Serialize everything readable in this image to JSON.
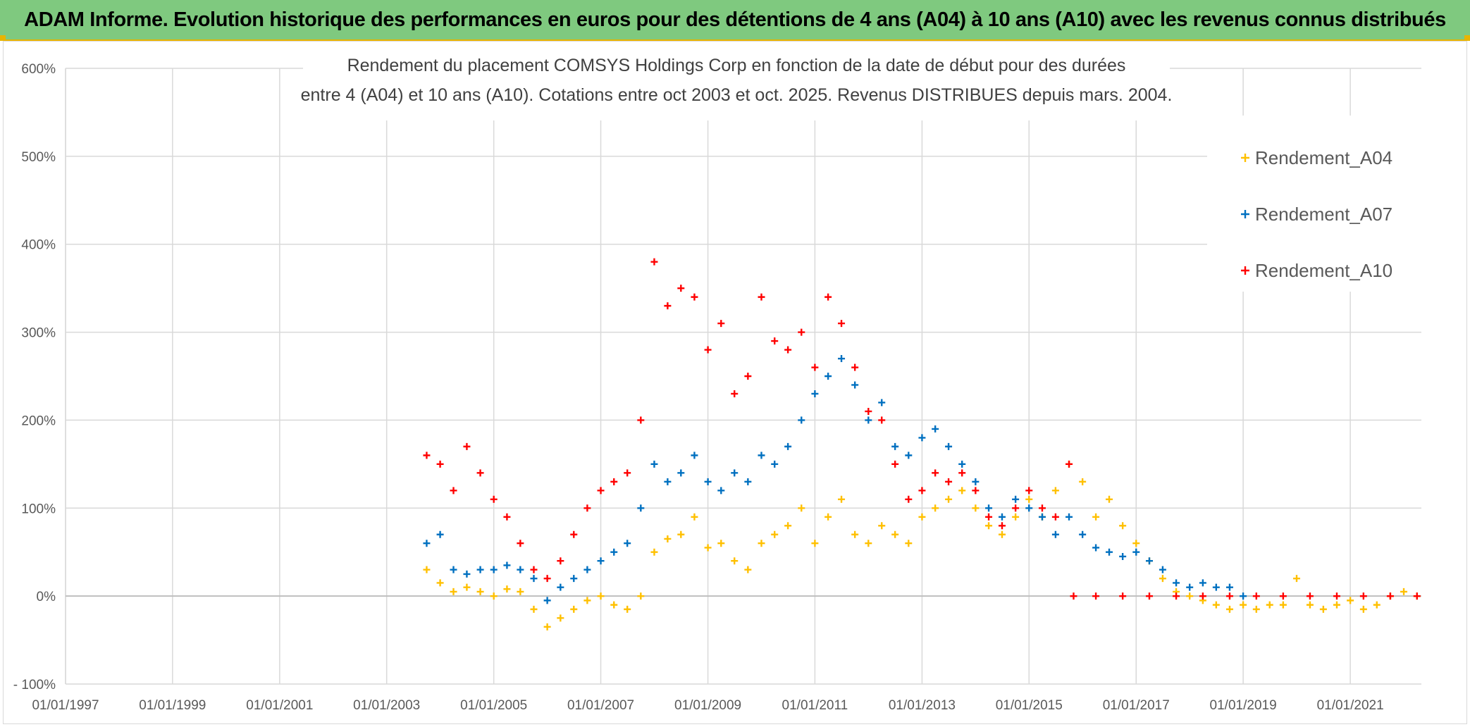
{
  "banner": {
    "title": "ADAM Informe. Evolution historique des performances en euros pour des détentions de 4 ans (A04) à 10 ans (A10) avec les revenus connus distribués"
  },
  "chart_data": {
    "type": "scatter",
    "title_line1": "Rendement du placement COMSYS Holdings Corp en fonction de la date de début pour des durées",
    "title_line2": "entre 4 (A04) et 10 ans (A10). Cotations entre oct 2003 et oct. 2025. Revenus DISTRIBUES depuis mars. 2004.",
    "xlabel": "",
    "ylabel": "",
    "xlim": [
      "1997-01-01",
      "2022-05-01"
    ],
    "ylim": [
      -100,
      600
    ],
    "x_ticks": [
      "01/01/1997",
      "01/01/1999",
      "01/01/2001",
      "01/01/2003",
      "01/01/2005",
      "01/01/2007",
      "01/01/2009",
      "01/01/2011",
      "01/01/2013",
      "01/01/2015",
      "01/01/2017",
      "01/01/2019",
      "01/01/2021"
    ],
    "y_ticks": [
      "- 100%",
      "0%",
      "100%",
      "200%",
      "300%",
      "400%",
      "500%",
      "600%"
    ],
    "y_tick_values": [
      -100,
      0,
      100,
      200,
      300,
      400,
      500,
      600
    ],
    "grid": true,
    "legend_position": "top-right",
    "marker": "+",
    "series": [
      {
        "name": "Rendement_A04",
        "color": "#ffc000",
        "points": [
          [
            "2003-10-01",
            30
          ],
          [
            "2004-01-01",
            15
          ],
          [
            "2004-04-01",
            5
          ],
          [
            "2004-07-01",
            10
          ],
          [
            "2004-10-01",
            5
          ],
          [
            "2005-01-01",
            0
          ],
          [
            "2005-04-01",
            8
          ],
          [
            "2005-07-01",
            5
          ],
          [
            "2005-10-01",
            -15
          ],
          [
            "2006-01-01",
            -35
          ],
          [
            "2006-04-01",
            -25
          ],
          [
            "2006-07-01",
            -15
          ],
          [
            "2006-10-01",
            -5
          ],
          [
            "2007-01-01",
            0
          ],
          [
            "2007-04-01",
            -10
          ],
          [
            "2007-07-01",
            -15
          ],
          [
            "2007-10-01",
            0
          ],
          [
            "2008-01-01",
            50
          ],
          [
            "2008-04-01",
            65
          ],
          [
            "2008-07-01",
            70
          ],
          [
            "2008-10-01",
            90
          ],
          [
            "2009-01-01",
            55
          ],
          [
            "2009-04-01",
            60
          ],
          [
            "2009-07-01",
            40
          ],
          [
            "2009-10-01",
            30
          ],
          [
            "2010-01-01",
            60
          ],
          [
            "2010-04-01",
            70
          ],
          [
            "2010-07-01",
            80
          ],
          [
            "2010-10-01",
            100
          ],
          [
            "2011-01-01",
            60
          ],
          [
            "2011-04-01",
            90
          ],
          [
            "2011-07-01",
            110
          ],
          [
            "2011-10-01",
            70
          ],
          [
            "2012-01-01",
            60
          ],
          [
            "2012-04-01",
            80
          ],
          [
            "2012-07-01",
            70
          ],
          [
            "2012-10-01",
            60
          ],
          [
            "2013-01-01",
            90
          ],
          [
            "2013-04-01",
            100
          ],
          [
            "2013-07-01",
            110
          ],
          [
            "2013-10-01",
            120
          ],
          [
            "2014-01-01",
            100
          ],
          [
            "2014-04-01",
            80
          ],
          [
            "2014-07-01",
            70
          ],
          [
            "2014-10-01",
            90
          ],
          [
            "2015-01-01",
            110
          ],
          [
            "2015-04-01",
            90
          ],
          [
            "2015-07-01",
            120
          ],
          [
            "2015-10-01",
            150
          ],
          [
            "2016-01-01",
            130
          ],
          [
            "2016-04-01",
            90
          ],
          [
            "2016-07-01",
            110
          ],
          [
            "2016-10-01",
            80
          ],
          [
            "2017-01-01",
            60
          ],
          [
            "2017-04-01",
            40
          ],
          [
            "2017-07-01",
            20
          ],
          [
            "2017-10-01",
            5
          ],
          [
            "2018-01-01",
            0
          ],
          [
            "2018-04-01",
            -5
          ],
          [
            "2018-07-01",
            -10
          ],
          [
            "2018-10-01",
            -15
          ],
          [
            "2019-01-01",
            -10
          ],
          [
            "2019-04-01",
            -15
          ],
          [
            "2019-07-01",
            -10
          ],
          [
            "2019-10-01",
            -10
          ],
          [
            "2020-01-01",
            20
          ],
          [
            "2020-04-01",
            -10
          ],
          [
            "2020-07-01",
            -15
          ],
          [
            "2020-10-01",
            -10
          ],
          [
            "2021-01-01",
            -5
          ],
          [
            "2021-04-01",
            -15
          ],
          [
            "2021-07-01",
            -10
          ],
          [
            "2021-10-01",
            0
          ],
          [
            "2022-01-01",
            5
          ],
          [
            "2022-04-01",
            0
          ]
        ]
      },
      {
        "name": "Rendement_A07",
        "color": "#0070c0",
        "points": [
          [
            "2003-10-01",
            60
          ],
          [
            "2004-01-01",
            70
          ],
          [
            "2004-04-01",
            30
          ],
          [
            "2004-07-01",
            25
          ],
          [
            "2004-10-01",
            30
          ],
          [
            "2005-01-01",
            30
          ],
          [
            "2005-04-01",
            35
          ],
          [
            "2005-07-01",
            30
          ],
          [
            "2005-10-01",
            20
          ],
          [
            "2006-01-01",
            -5
          ],
          [
            "2006-04-01",
            10
          ],
          [
            "2006-07-01",
            20
          ],
          [
            "2006-10-01",
            30
          ],
          [
            "2007-01-01",
            40
          ],
          [
            "2007-04-01",
            50
          ],
          [
            "2007-07-01",
            60
          ],
          [
            "2007-10-01",
            100
          ],
          [
            "2008-01-01",
            150
          ],
          [
            "2008-04-01",
            130
          ],
          [
            "2008-07-01",
            140
          ],
          [
            "2008-10-01",
            160
          ],
          [
            "2009-01-01",
            130
          ],
          [
            "2009-04-01",
            120
          ],
          [
            "2009-07-01",
            140
          ],
          [
            "2009-10-01",
            130
          ],
          [
            "2010-01-01",
            160
          ],
          [
            "2010-04-01",
            150
          ],
          [
            "2010-07-01",
            170
          ],
          [
            "2010-10-01",
            200
          ],
          [
            "2011-01-01",
            230
          ],
          [
            "2011-04-01",
            250
          ],
          [
            "2011-07-01",
            270
          ],
          [
            "2011-10-01",
            240
          ],
          [
            "2012-01-01",
            200
          ],
          [
            "2012-04-01",
            220
          ],
          [
            "2012-07-01",
            170
          ],
          [
            "2012-10-01",
            160
          ],
          [
            "2013-01-01",
            180
          ],
          [
            "2013-04-01",
            190
          ],
          [
            "2013-07-01",
            170
          ],
          [
            "2013-10-01",
            150
          ],
          [
            "2014-01-01",
            130
          ],
          [
            "2014-04-01",
            100
          ],
          [
            "2014-07-01",
            90
          ],
          [
            "2014-10-01",
            110
          ],
          [
            "2015-01-01",
            100
          ],
          [
            "2015-04-01",
            90
          ],
          [
            "2015-07-01",
            70
          ],
          [
            "2015-10-01",
            90
          ],
          [
            "2016-01-01",
            70
          ],
          [
            "2016-04-01",
            55
          ],
          [
            "2016-07-01",
            50
          ],
          [
            "2016-10-01",
            45
          ],
          [
            "2017-01-01",
            50
          ],
          [
            "2017-04-01",
            40
          ],
          [
            "2017-07-01",
            30
          ],
          [
            "2017-10-01",
            15
          ],
          [
            "2018-01-01",
            10
          ],
          [
            "2018-04-01",
            15
          ],
          [
            "2018-07-01",
            10
          ],
          [
            "2018-10-01",
            10
          ],
          [
            "2019-01-01",
            0
          ]
        ]
      },
      {
        "name": "Rendement_A10",
        "color": "#ff0000",
        "points": [
          [
            "2003-10-01",
            160
          ],
          [
            "2004-01-01",
            150
          ],
          [
            "2004-04-01",
            120
          ],
          [
            "2004-07-01",
            170
          ],
          [
            "2004-10-01",
            140
          ],
          [
            "2005-01-01",
            110
          ],
          [
            "2005-04-01",
            90
          ],
          [
            "2005-07-01",
            60
          ],
          [
            "2005-10-01",
            30
          ],
          [
            "2006-01-01",
            20
          ],
          [
            "2006-04-01",
            40
          ],
          [
            "2006-07-01",
            70
          ],
          [
            "2006-10-01",
            100
          ],
          [
            "2007-01-01",
            120
          ],
          [
            "2007-04-01",
            130
          ],
          [
            "2007-07-01",
            140
          ],
          [
            "2007-10-01",
            200
          ],
          [
            "2008-01-01",
            380
          ],
          [
            "2008-04-01",
            330
          ],
          [
            "2008-07-01",
            350
          ],
          [
            "2008-10-01",
            340
          ],
          [
            "2009-01-01",
            280
          ],
          [
            "2009-04-01",
            310
          ],
          [
            "2009-07-01",
            230
          ],
          [
            "2009-10-01",
            250
          ],
          [
            "2010-01-01",
            340
          ],
          [
            "2010-04-01",
            290
          ],
          [
            "2010-07-01",
            280
          ],
          [
            "2010-10-01",
            300
          ],
          [
            "2011-01-01",
            260
          ],
          [
            "2011-04-01",
            340
          ],
          [
            "2011-07-01",
            310
          ],
          [
            "2011-10-01",
            260
          ],
          [
            "2012-01-01",
            210
          ],
          [
            "2012-04-01",
            200
          ],
          [
            "2012-07-01",
            150
          ],
          [
            "2012-10-01",
            110
          ],
          [
            "2013-01-01",
            120
          ],
          [
            "2013-04-01",
            140
          ],
          [
            "2013-07-01",
            130
          ],
          [
            "2013-10-01",
            140
          ],
          [
            "2014-01-01",
            120
          ],
          [
            "2014-04-01",
            90
          ],
          [
            "2014-07-01",
            80
          ],
          [
            "2014-10-01",
            100
          ],
          [
            "2015-01-01",
            120
          ],
          [
            "2015-04-01",
            100
          ],
          [
            "2015-07-01",
            90
          ],
          [
            "2015-10-01",
            150
          ],
          [
            "2015-11-01",
            0
          ],
          [
            "2016-04-01",
            0
          ],
          [
            "2016-10-01",
            0
          ],
          [
            "2017-04-01",
            0
          ],
          [
            "2017-10-01",
            0
          ],
          [
            "2018-04-01",
            0
          ],
          [
            "2018-10-01",
            0
          ],
          [
            "2019-04-01",
            0
          ],
          [
            "2019-10-01",
            0
          ],
          [
            "2020-04-01",
            0
          ],
          [
            "2020-10-01",
            0
          ],
          [
            "2021-04-01",
            0
          ],
          [
            "2021-10-01",
            0
          ],
          [
            "2022-04-01",
            0
          ]
        ]
      }
    ]
  }
}
